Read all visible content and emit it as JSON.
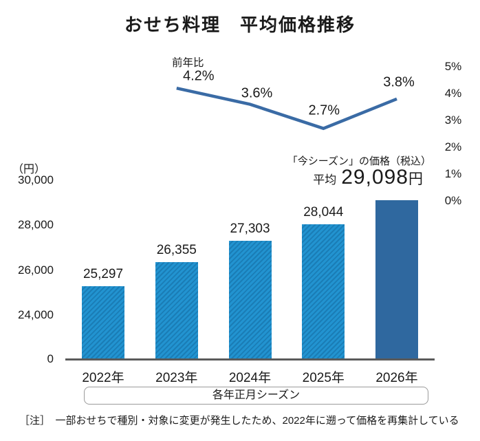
{
  "title": "おせち料理　平均価格推移",
  "colors": {
    "bar_striped_base": "#2293d0",
    "bar_striped_stripe": "#1a7db6",
    "bar_solid": "#2f689f",
    "line": "#3a6ba5",
    "axis_line": "#5a5a5a",
    "text": "#1a1a1a",
    "box_border": "#9a9a9a"
  },
  "chart_data": {
    "type": "bar",
    "categories": [
      "2022年",
      "2023年",
      "2024年",
      "2025年",
      "2026年"
    ],
    "series": [
      {
        "name": "平均価格",
        "type": "bar",
        "values": [
          25297,
          26355,
          27303,
          28044,
          29098
        ],
        "value_labels": [
          "25,297",
          "26,355",
          "27,303",
          "28,044",
          "29,098"
        ]
      },
      {
        "name": "前年比",
        "type": "line",
        "x": [
          "2023年",
          "2024年",
          "2025年",
          "2026年"
        ],
        "values": [
          4.2,
          3.6,
          2.7,
          3.8
        ],
        "value_labels": [
          "4.2%",
          "3.6%",
          "2.7%",
          "3.8%"
        ]
      }
    ],
    "line_label": "前年比",
    "left_axis": {
      "unit": "（円）",
      "ticks": [
        "30,000",
        "28,000",
        "26,000",
        "24,000"
      ],
      "zero": "0",
      "note": "axis broken between 0 and 24,000"
    },
    "right_axis": {
      "ticks": [
        "5%",
        "4%",
        "3%",
        "2%",
        "1%",
        "0%"
      ],
      "range": [
        0,
        5
      ]
    },
    "x_axis_caption": "各年正月シーズン",
    "grid": false,
    "legend": "none"
  },
  "annotation": {
    "line1": "「今シーズン」の価格（税込）",
    "prefix": "平均",
    "value": "29,098",
    "suffix": "円"
  },
  "note": "［注］　一部おせちで種別・対象に変更が発生したため、2022年に遡って価格を再集計している"
}
